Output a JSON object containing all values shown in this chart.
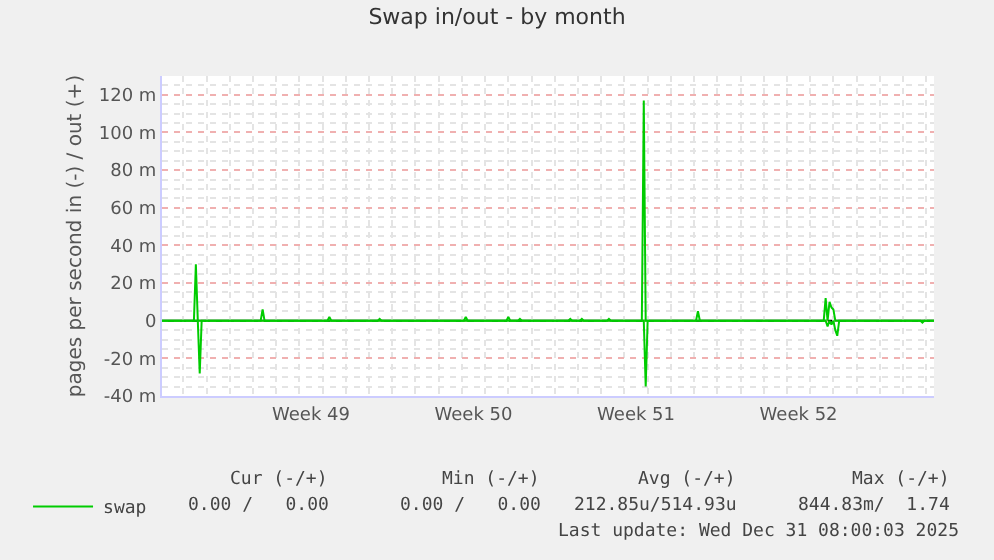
{
  "chart_data": {
    "type": "line",
    "title": "Swap in/out - by month",
    "ylabel": "pages per second in (-) / out (+)",
    "x": [
      "2025-11-28T02:00",
      "2025-11-29T11:00",
      "2025-11-29T13:00",
      "2025-11-29T15:00",
      "2025-11-29T17:00",
      "2025-11-29T19:00",
      "2025-12-02T08:00",
      "2025-12-02T10:00",
      "2025-12-02T12:00",
      "2025-12-05T05:00",
      "2025-12-05T07:00",
      "2025-12-05T09:00",
      "2025-12-07T09:00",
      "2025-12-07T11:00",
      "2025-12-07T13:00",
      "2025-12-11T02:00",
      "2025-12-11T04:00",
      "2025-12-11T06:00",
      "2025-12-12T22:00",
      "2025-12-13T00:00",
      "2025-12-13T02:00",
      "2025-12-13T10:00",
      "2025-12-13T12:00",
      "2025-12-13T14:00",
      "2025-12-15T14:00",
      "2025-12-15T16:00",
      "2025-12-15T18:00",
      "2025-12-16T02:00",
      "2025-12-16T04:00",
      "2025-12-16T06:00",
      "2025-12-17T06:00",
      "2025-12-17T08:00",
      "2025-12-17T10:00",
      "2025-12-18T18:00",
      "2025-12-18T20:00",
      "2025-12-18T22:00",
      "2025-12-19T00:00",
      "2025-12-21T02:00",
      "2025-12-21T04:00",
      "2025-12-21T06:00",
      "2025-12-26T14:00",
      "2025-12-26T16:00",
      "2025-12-26T18:00",
      "2025-12-26T20:00",
      "2025-12-26T22:00",
      "2025-12-27T00:00",
      "2025-12-27T02:00",
      "2025-12-27T04:00",
      "2025-12-27T06:00",
      "2025-12-30T18:00",
      "2025-12-30T20:00",
      "2025-12-30T22:00",
      "2025-12-31T08:00"
    ],
    "series": [
      {
        "name": "swap",
        "color": "#00cc00",
        "values": [
          0,
          0,
          30,
          0,
          0,
          0,
          0,
          6,
          0,
          0,
          2,
          0,
          0,
          1,
          0,
          0,
          2,
          0,
          0,
          2,
          0,
          0,
          1,
          0,
          0,
          1,
          0,
          0,
          1,
          0,
          0,
          1,
          0,
          0,
          117,
          0,
          0,
          0,
          5,
          0,
          0,
          12,
          0,
          10,
          7,
          6,
          0,
          0,
          0,
          0,
          0,
          0,
          0
        ]
      },
      {
        "color": "#00cc00",
        "values": [
          0,
          0,
          0,
          0,
          -28,
          0,
          0,
          0,
          0,
          0,
          0,
          0,
          0,
          0,
          0,
          0,
          0,
          0,
          0,
          0,
          0,
          0,
          0,
          0,
          0,
          0,
          0,
          0,
          0,
          0,
          0,
          0,
          0,
          0,
          0,
          -35,
          0,
          0,
          0,
          0,
          0,
          0,
          -3,
          0,
          -2,
          0,
          -5,
          -8,
          0,
          0,
          -1,
          0,
          0
        ]
      }
    ],
    "xlim": [
      "2025-11-28T02:00",
      "2025-12-31T08:00"
    ],
    "xticks": [
      {
        "value": "2025-12-04T12:00",
        "label": "Week 49"
      },
      {
        "value": "2025-12-11T12:00",
        "label": "Week 50"
      },
      {
        "value": "2025-12-18T12:00",
        "label": "Week 51"
      },
      {
        "value": "2025-12-25T12:00",
        "label": "Week 52"
      }
    ],
    "ylim": [
      -40,
      130
    ],
    "yticks": [
      {
        "value": -40,
        "label": "-40 m"
      },
      {
        "value": -20,
        "label": "-20 m"
      },
      0,
      {
        "value": 20,
        "label": "20 m"
      },
      {
        "value": 40,
        "label": "40 m"
      },
      {
        "value": 60,
        "label": "60 m"
      },
      {
        "value": 80,
        "label": "80 m"
      },
      {
        "value": 100,
        "label": "100 m"
      },
      {
        "value": 120,
        "label": "120 m"
      }
    ],
    "ref_lines": [
      {
        "axis": "y",
        "value": 0,
        "color": "#000000"
      }
    ],
    "grid": true,
    "legend": "bottom left",
    "line_style": "solid",
    "marker": "none",
    "annotations": [
      "Cur (-/+)",
      "Min (-/+)",
      "Avg (-/+)",
      "Max (-/+)",
      "0.00 /   0.00",
      "0.00 /   0.00",
      "212.85u/514.93u",
      "844.83m/  1.74",
      "Last update: Wed Dec 31 08:00:03 2025"
    ]
  }
}
